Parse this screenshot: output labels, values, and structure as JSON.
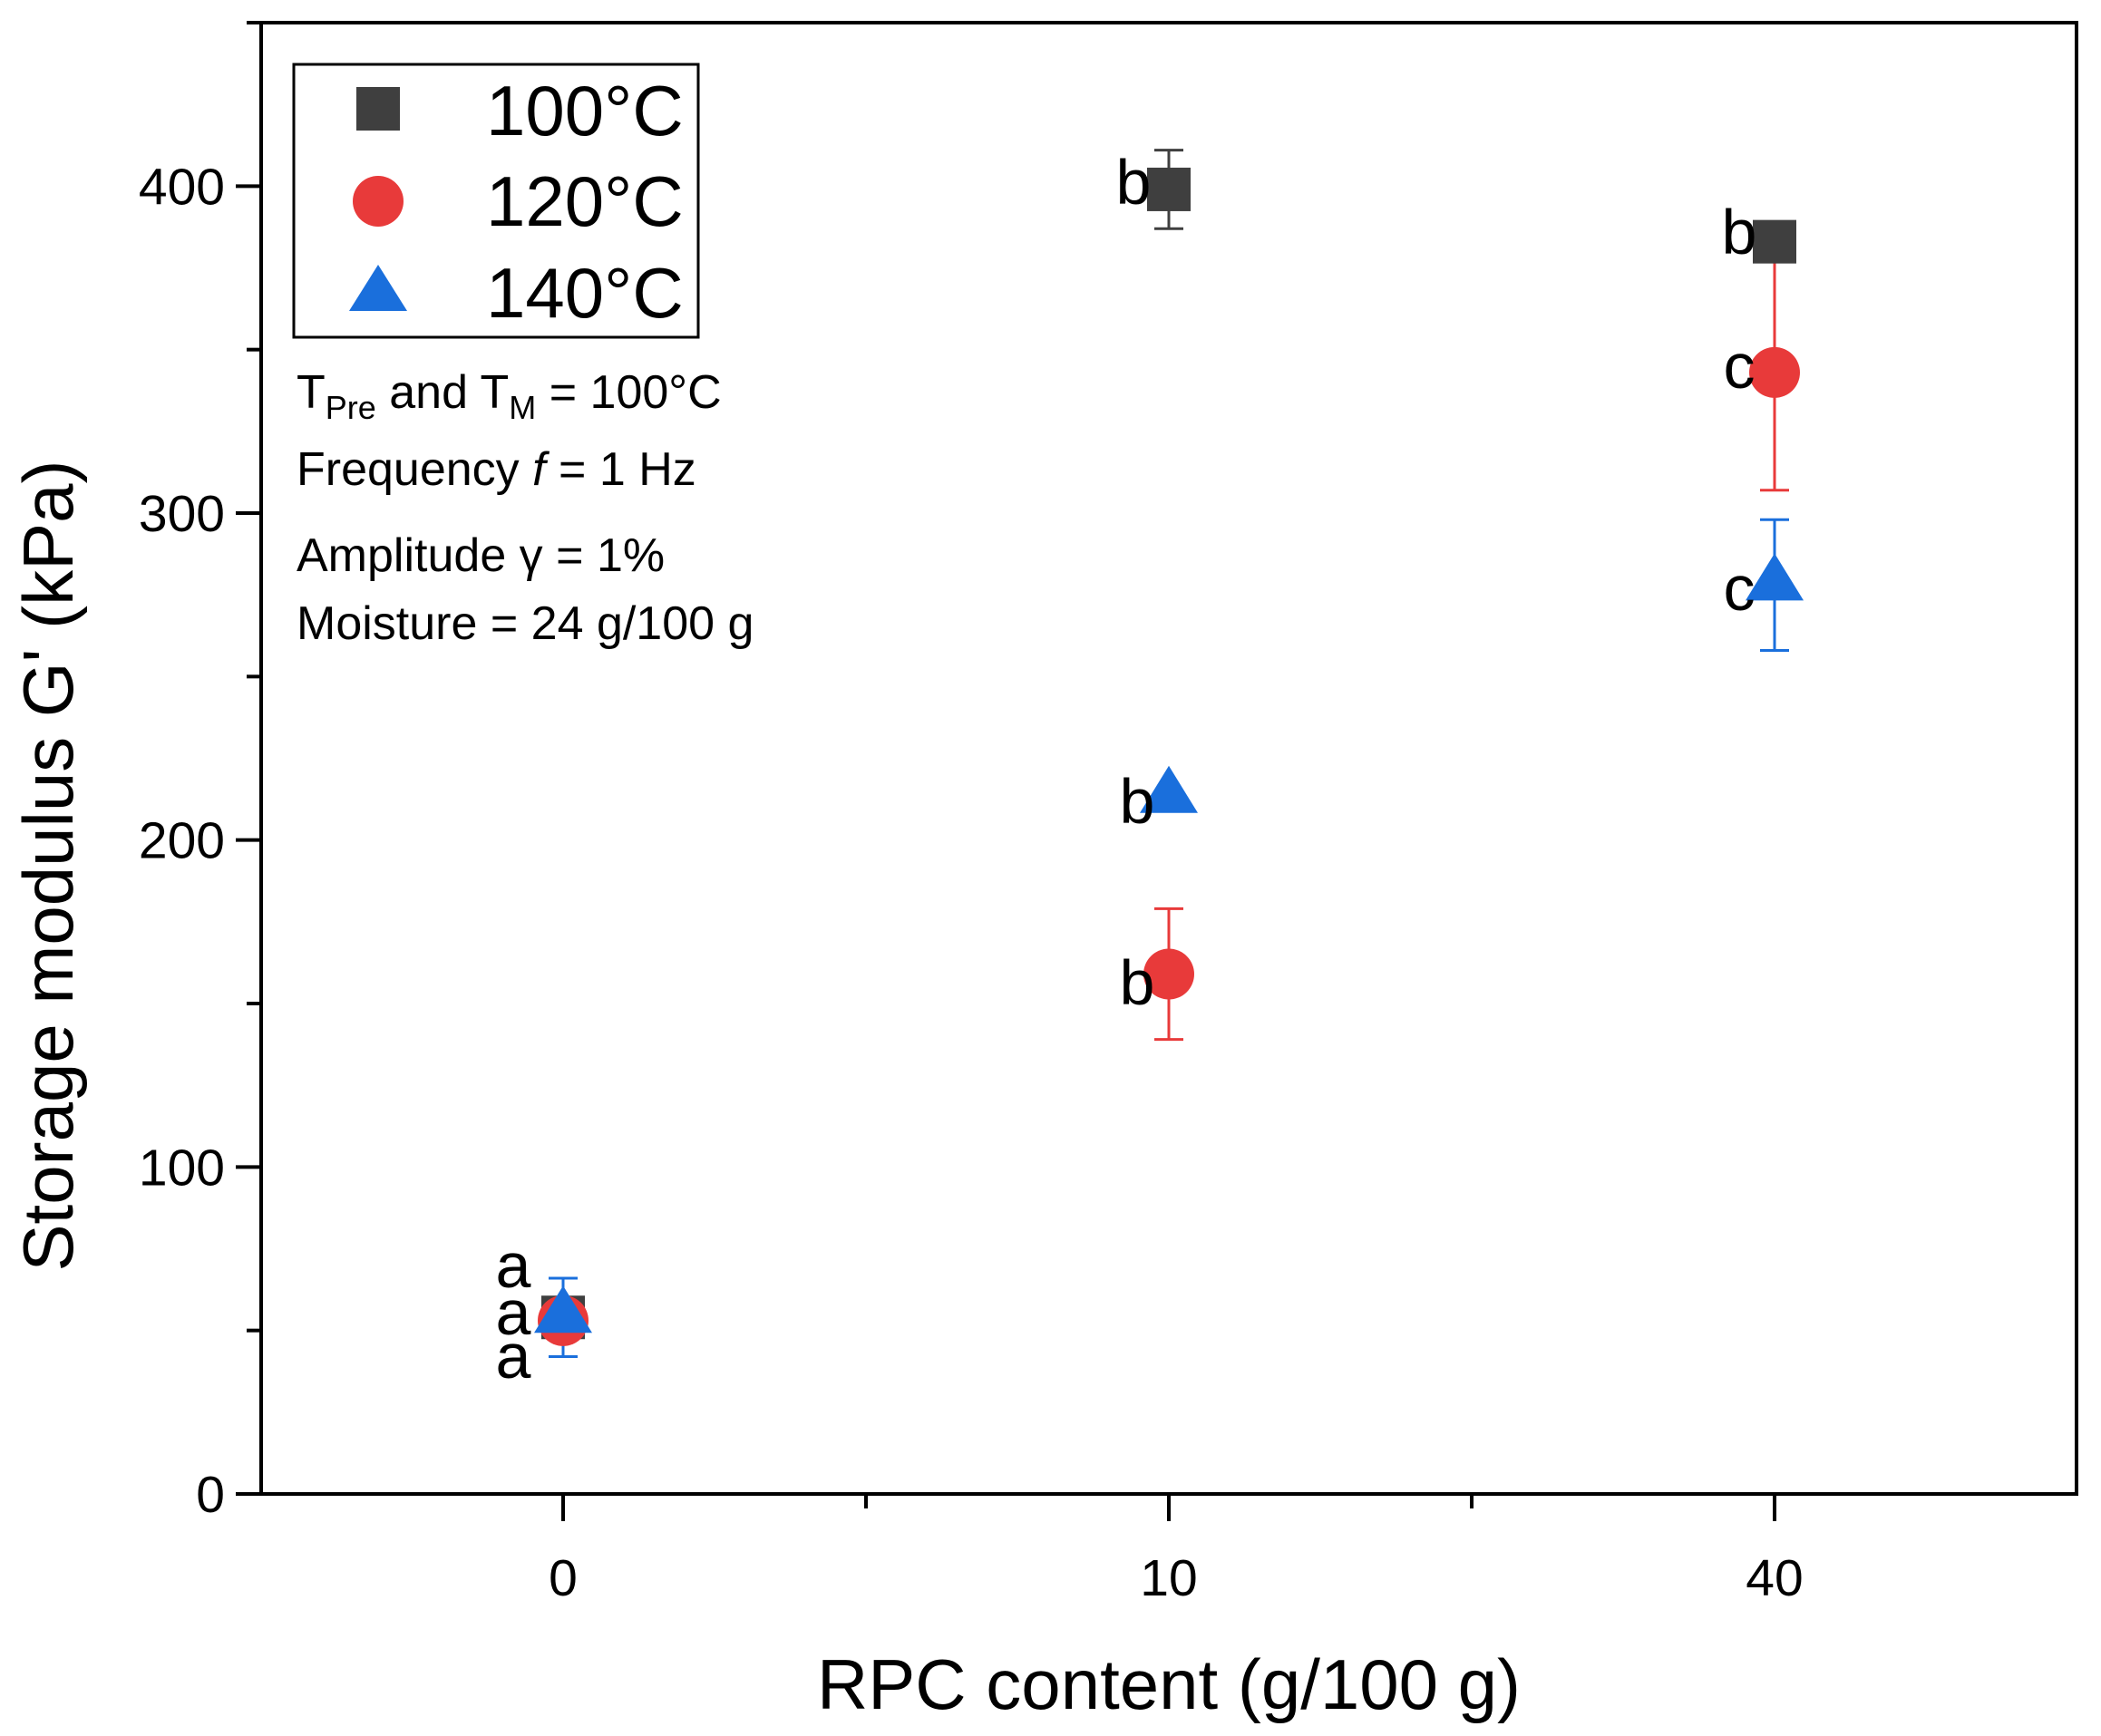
{
  "chart_data": {
    "type": "scatter",
    "x_axis": {
      "title": "RPC content (g/100 g)",
      "categories": [
        "0",
        "10",
        "40"
      ],
      "scale": "categorical"
    },
    "y_axis": {
      "title": "Storage modulus G' (kPa)",
      "range": [
        0,
        450
      ],
      "ticks": [
        0,
        100,
        200,
        300,
        400
      ],
      "tick_labels": [
        "0",
        "100",
        "200",
        "300",
        "400"
      ]
    },
    "series": [
      {
        "name": "100°C",
        "marker": "square",
        "color": "#3f3f3f",
        "points": [
          {
            "category": "0",
            "value": 54,
            "error": 3,
            "letter": "a"
          },
          {
            "category": "10",
            "value": 399,
            "error": 12,
            "letter": "b"
          },
          {
            "category": "40",
            "value": 383,
            "error": 0,
            "letter": "b"
          }
        ]
      },
      {
        "name": "120°C",
        "marker": "circle",
        "color": "#e83a3a",
        "points": [
          {
            "category": "0",
            "value": 53,
            "error": 4,
            "letter": "a"
          },
          {
            "category": "10",
            "value": 159,
            "error": 20,
            "letter": "b"
          },
          {
            "category": "40",
            "value": 343,
            "error": 36,
            "letter": "c"
          }
        ]
      },
      {
        "name": "140°C",
        "marker": "triangle",
        "color": "#1a6fdc",
        "points": [
          {
            "category": "0",
            "value": 54,
            "error": 12,
            "letter": "a"
          },
          {
            "category": "10",
            "value": 213,
            "error": 0,
            "letter": "b"
          },
          {
            "category": "40",
            "value": 278,
            "error": 20,
            "letter": "c"
          }
        ]
      }
    ],
    "legend": {
      "placement": "top-left",
      "entries": [
        "100°C",
        "120°C",
        "140°C"
      ]
    },
    "annotations": {
      "line1": {
        "T1": "T",
        "sub1": "Pre",
        "and": " and T",
        "sub2": "M",
        "rest": " = 100°C"
      },
      "line2": {
        "prefix": "Frequency ",
        "italic": "f",
        "suffix": " = 1 Hz"
      },
      "line3": "Amplitude γ = 1%",
      "line4": "Moisture = 24 g/100 g"
    }
  }
}
